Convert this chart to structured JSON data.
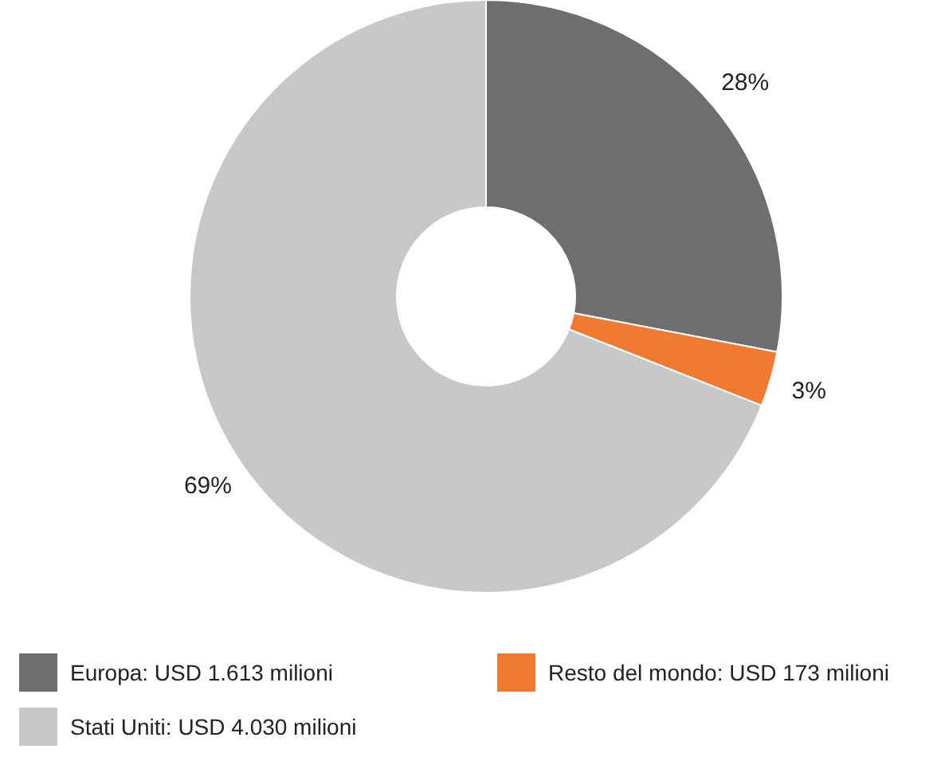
{
  "chart_data": {
    "type": "donut",
    "categories": [
      "Europa: USD 1.613 milioni",
      "Resto del mondo: USD 173 milioni",
      "Stati Uniti: USD 4.030 milioni"
    ],
    "values": [
      28,
      3,
      69
    ],
    "colors": [
      "#6e6e6e",
      "#f07a30",
      "#c8c8c8"
    ],
    "value_labels": [
      "28%",
      "3%",
      "69%"
    ],
    "legend": "bottom"
  }
}
